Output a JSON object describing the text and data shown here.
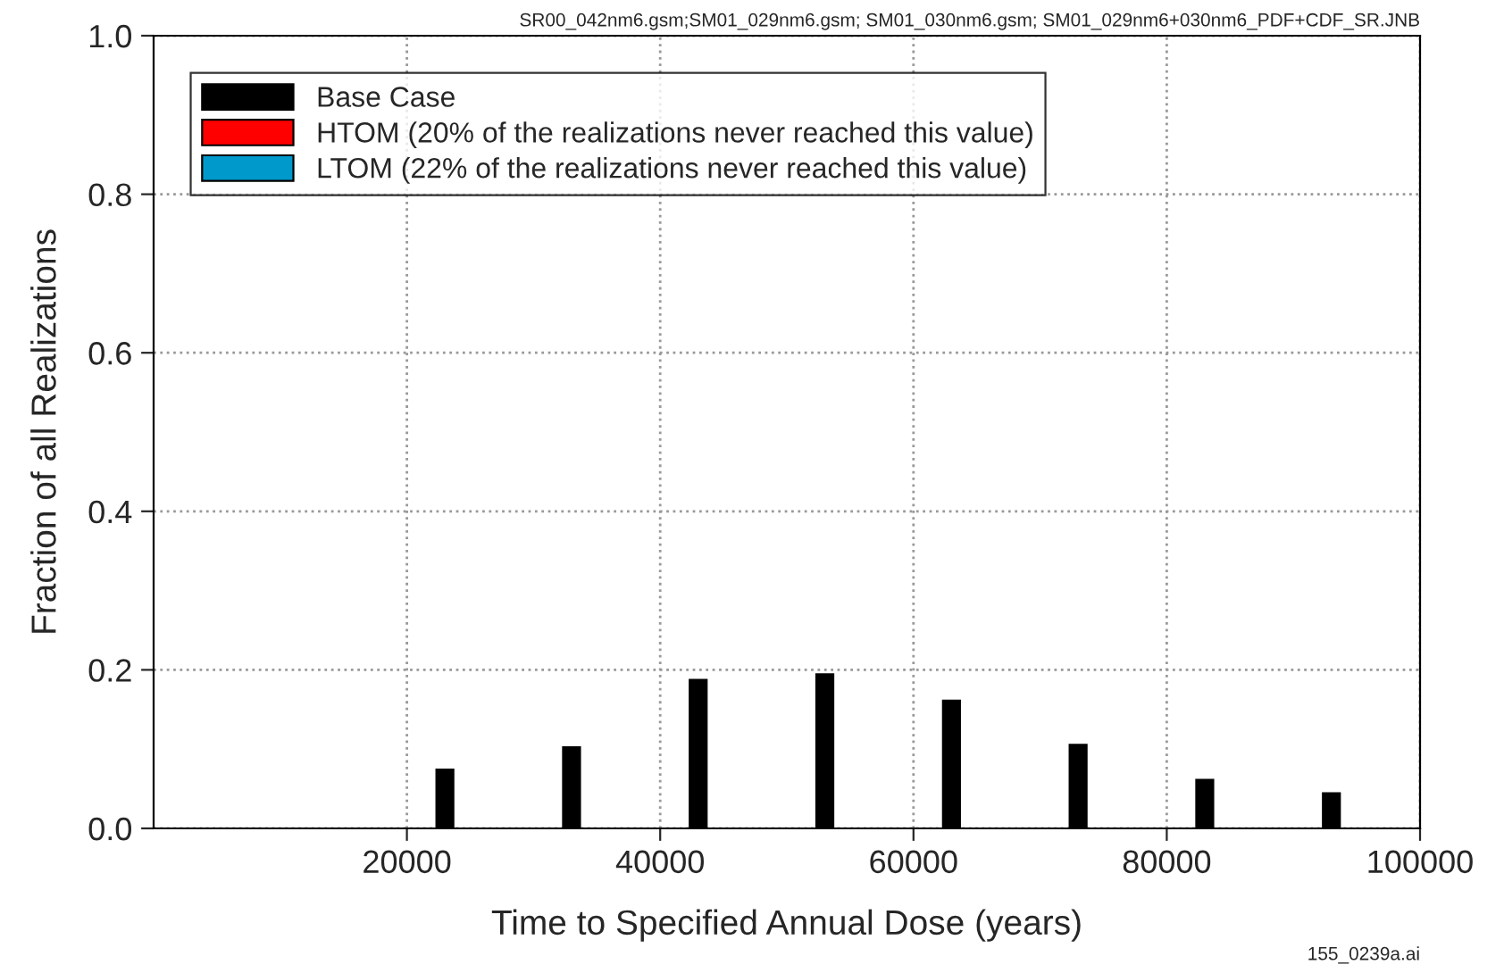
{
  "chart_data": {
    "type": "bar",
    "xlabel": "Time to Specified Annual Dose (years)",
    "ylabel": "Fraction of all Realizations",
    "x": [
      23000,
      33000,
      43000,
      53000,
      63000,
      73000,
      83000,
      93000
    ],
    "series": [
      {
        "name": "Base Case",
        "color": "#000000",
        "values": [
          0.074,
          0.102,
          0.187,
          0.194,
          0.161,
          0.105,
          0.061,
          0.044
        ]
      },
      {
        "name": "HTOM (20% of the realizations never reached this value)",
        "color": "#ff0000",
        "values": [
          null,
          null,
          null,
          null,
          null,
          null,
          null,
          null
        ]
      },
      {
        "name": "LTOM (22% of the realizations never reached this value)",
        "color": "#0099cc",
        "values": [
          null,
          null,
          null,
          null,
          null,
          null,
          null,
          null
        ]
      }
    ],
    "xlim": [
      0,
      100000
    ],
    "xticks": [
      20000,
      40000,
      60000,
      80000,
      100000
    ],
    "ylim": [
      0,
      1.0
    ],
    "yticks": [
      {
        "value": 0,
        "label": "0.0"
      },
      {
        "value": 0.2,
        "label": "0.2"
      },
      {
        "value": 0.4,
        "label": "0.4"
      },
      {
        "value": 0.6,
        "label": "0.6"
      },
      {
        "value": 0.8,
        "label": "0.8"
      },
      {
        "value": 1.0,
        "label": "1.0"
      }
    ],
    "grid": true,
    "legend": "top left",
    "annotations": [
      "SR00_042nm6.gsm;SM01_029nm6.gsm; SM01_030nm6.gsm; SM01_029nm6+030nm6_PDF+CDF_SR.JNB",
      "155_0239a.ai"
    ]
  }
}
